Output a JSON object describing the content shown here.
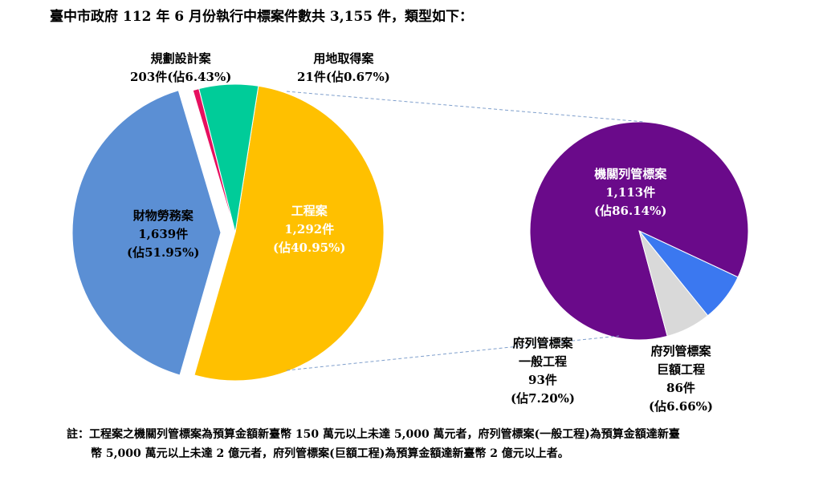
{
  "title": "臺中市政府 112 年 6 月份執行中標案件數共 3,155 件，類型如下：",
  "chart_data": [
    {
      "type": "pie",
      "slices": [
        {
          "name": "財物勞務案",
          "count": "1,639件",
          "pct": "(佔51.95%)",
          "value": 1639,
          "color": "#FFC000"
        },
        {
          "name": "規劃設計案",
          "count": "203件(佔6.43%)",
          "value": 203,
          "color": "#00CC99"
        },
        {
          "name": "用地取得案",
          "count": "21件(佔0.67%)",
          "value": 21,
          "color": "#E6105F"
        },
        {
          "name": "工程案",
          "count": "1,292件",
          "pct": "(佔40.95%)",
          "value": 1292,
          "color": "#5B8FD4",
          "exploded": true
        }
      ]
    },
    {
      "type": "pie",
      "slices": [
        {
          "name": "機關列管標案",
          "count": "1,113件",
          "pct": "(佔86.14%)",
          "value": 1113,
          "color": "#6A0A8A"
        },
        {
          "name": "府列管標案",
          "sub": "一般工程",
          "count": "93件",
          "pct": "(佔7.20%)",
          "value": 93,
          "color": "#3B78F0"
        },
        {
          "name": "府列管標案",
          "sub": "巨額工程",
          "count": "86件",
          "pct": "(佔6.66%)",
          "value": 86,
          "color": "#D9D9D9"
        }
      ]
    }
  ],
  "note": {
    "line1": "註：工程案之機關列管標案為預算金額新臺幣 150 萬元以上未達 5,000 萬元者，府列管標案(一般工程)為預算金額達新臺",
    "line2": "幣 5,000 萬元以上未達 2 億元者，府列管標案(巨額工程)為預算金額達新臺幣 2 億元以上者。"
  }
}
